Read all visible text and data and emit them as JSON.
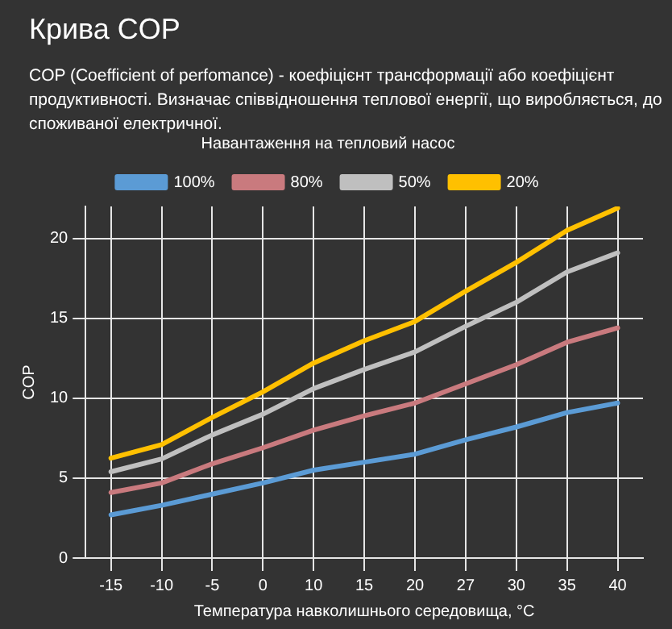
{
  "chart_data": {
    "type": "line",
    "title": "Крива COP",
    "subtitle": "COP (Coefficient of perfomance) - коефіцієнт трансформації або коефіцієнт продуктивності. Визначає співвідношення теплової енергії, що виробляється, до споживаної електричної.",
    "xlabel": "Температура навколишнього середовища, °C",
    "ylabel": "COP",
    "legend_title": "Навантаження на тепловий насос",
    "legend": "top",
    "grid": true,
    "marker": "none",
    "line_style": "solid",
    "categories": [
      "-15",
      "-10",
      "-5",
      "0",
      "10",
      "15",
      "20",
      "27",
      "30",
      "35",
      "40"
    ],
    "ylim": [
      0,
      22
    ],
    "yticks": [
      0,
      5,
      10,
      15,
      20
    ],
    "series": [
      {
        "name": "100%",
        "color": "#5b9bd5",
        "values": [
          2.7,
          3.3,
          4.0,
          4.7,
          5.5,
          6.0,
          6.5,
          7.4,
          8.2,
          9.1,
          9.7
        ]
      },
      {
        "name": "80%",
        "color": "#c97a7e",
        "values": [
          4.1,
          4.7,
          5.9,
          6.9,
          8.0,
          8.9,
          9.7,
          10.9,
          12.1,
          13.5,
          14.4
        ]
      },
      {
        "name": "50%",
        "color": "#bfbfbf",
        "values": [
          5.4,
          6.2,
          7.7,
          9.0,
          10.6,
          11.8,
          12.9,
          14.5,
          16.0,
          17.9,
          19.1
        ]
      },
      {
        "name": "20%",
        "color": "#ffc000",
        "values": [
          6.25,
          7.1,
          8.8,
          10.4,
          12.2,
          13.6,
          14.8,
          16.7,
          18.5,
          20.5,
          21.9
        ]
      }
    ]
  }
}
